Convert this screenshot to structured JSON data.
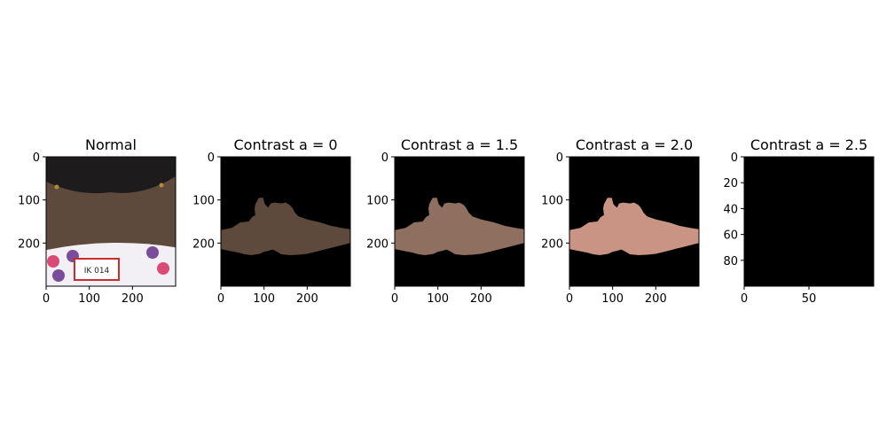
{
  "chart_data": [
    {
      "type": "image",
      "title": "Normal",
      "image_content": "back of neck with dark skin and hair, patterned garment with a tag reading IK 014",
      "tag_text": "IK 014",
      "extent": {
        "x": [
          0,
          300
        ],
        "y": [
          300,
          0
        ]
      },
      "xticks": [
        0,
        100,
        200
      ],
      "yticks": [
        0,
        100,
        200
      ]
    },
    {
      "type": "image",
      "title": "Contrast a = 0",
      "image_content": "segmented neck skin region on black background",
      "extent": {
        "x": [
          0,
          300
        ],
        "y": [
          300,
          0
        ]
      },
      "xticks": [
        0,
        100,
        200
      ],
      "yticks": [
        0,
        100,
        200
      ]
    },
    {
      "type": "image",
      "title": "Contrast a = 1.5",
      "image_content": "segmented neck skin region, brighter, on black background",
      "extent": {
        "x": [
          0,
          300
        ],
        "y": [
          300,
          0
        ]
      },
      "xticks": [
        0,
        100,
        200
      ],
      "yticks": [
        0,
        100,
        200
      ]
    },
    {
      "type": "image",
      "title": "Contrast a = 2.0",
      "image_content": "segmented neck skin region, much brighter, on black background",
      "extent": {
        "x": [
          0,
          300
        ],
        "y": [
          300,
          0
        ]
      },
      "xticks": [
        0,
        100,
        200
      ],
      "yticks": [
        0,
        100,
        200
      ]
    },
    {
      "type": "image",
      "title": "Contrast a = 2.5",
      "image_content": "entirely black image",
      "extent": {
        "x": [
          0,
          100
        ],
        "y": [
          100,
          0
        ]
      },
      "xticks": [
        0,
        50
      ],
      "yticks": [
        0,
        20,
        40,
        60,
        80
      ]
    }
  ],
  "colors": {
    "black": "#000000",
    "skin_dark": "#5e4a3c",
    "skin_mid": "#8f6f5f",
    "skin_bright": "#c99483",
    "hair": "#1e1b1d",
    "garment": "#f2f0f4",
    "pattern_purple": "#7b4c9a",
    "pattern_pink": "#d94a76",
    "tag_red": "#cc2b2b"
  }
}
